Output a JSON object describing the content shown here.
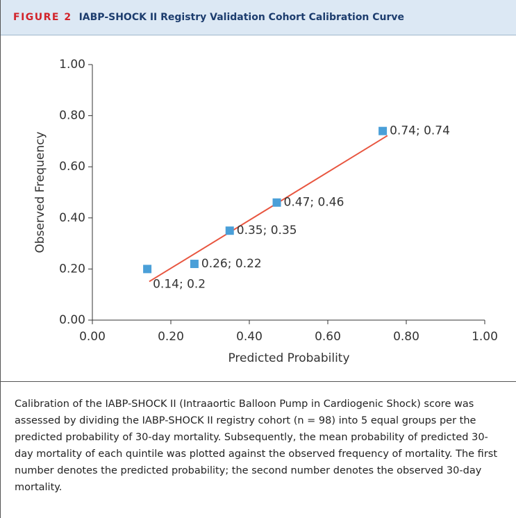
{
  "header": {
    "label": "FIGURE 2",
    "title": "IABP-SHOCK II Registry Validation Cohort Calibration Curve"
  },
  "chart_data": {
    "type": "scatter",
    "xlabel": "Predicted Probability",
    "ylabel": "Observed Frequency",
    "xlim": [
      0,
      1
    ],
    "ylim": [
      0,
      1
    ],
    "xticks": [
      {
        "value": 0,
        "label": "0.00"
      },
      {
        "value": 0.2,
        "label": "0.20"
      },
      {
        "value": 0.4,
        "label": "0.40"
      },
      {
        "value": 0.6,
        "label": "0.60"
      },
      {
        "value": 0.8,
        "label": "0.80"
      },
      {
        "value": 1,
        "label": "1.00"
      }
    ],
    "yticks": [
      {
        "value": 0,
        "label": "0.00"
      },
      {
        "value": 0.2,
        "label": "0.20"
      },
      {
        "value": 0.4,
        "label": "0.40"
      },
      {
        "value": 0.6,
        "label": "0.60"
      },
      {
        "value": 0.8,
        "label": "0.80"
      },
      {
        "value": 1,
        "label": "1.00"
      }
    ],
    "series": [
      {
        "color": "#4a9fd8",
        "x": [
          0.14,
          0.26,
          0.35,
          0.47,
          0.74
        ],
        "values": [
          0.2,
          0.22,
          0.35,
          0.46,
          0.74
        ],
        "value_labels": [
          "0.14; 0.2",
          "0.26; 0.22",
          "0.35; 0.35",
          "0.47; 0.46",
          "0.74; 0.74"
        ]
      }
    ],
    "trend_line": {
      "color": "#e8553f",
      "x": [
        0.145,
        0.752
      ],
      "values": [
        0.151,
        0.722
      ]
    }
  },
  "caption": "Calibration of the IABP-SHOCK II (Intraaortic Balloon Pump in Cardiogenic Shock) score was assessed by dividing the IABP-SHOCK II registry cohort (n = 98) into 5 equal groups per the predicted probability of 30-day mortality. Subsequently, the mean probability of predicted 30-day mortality of each quintile was plotted against the observed frequency of mortality. The first number denotes the predicted probability; the second number denotes the observed 30-day mortality."
}
